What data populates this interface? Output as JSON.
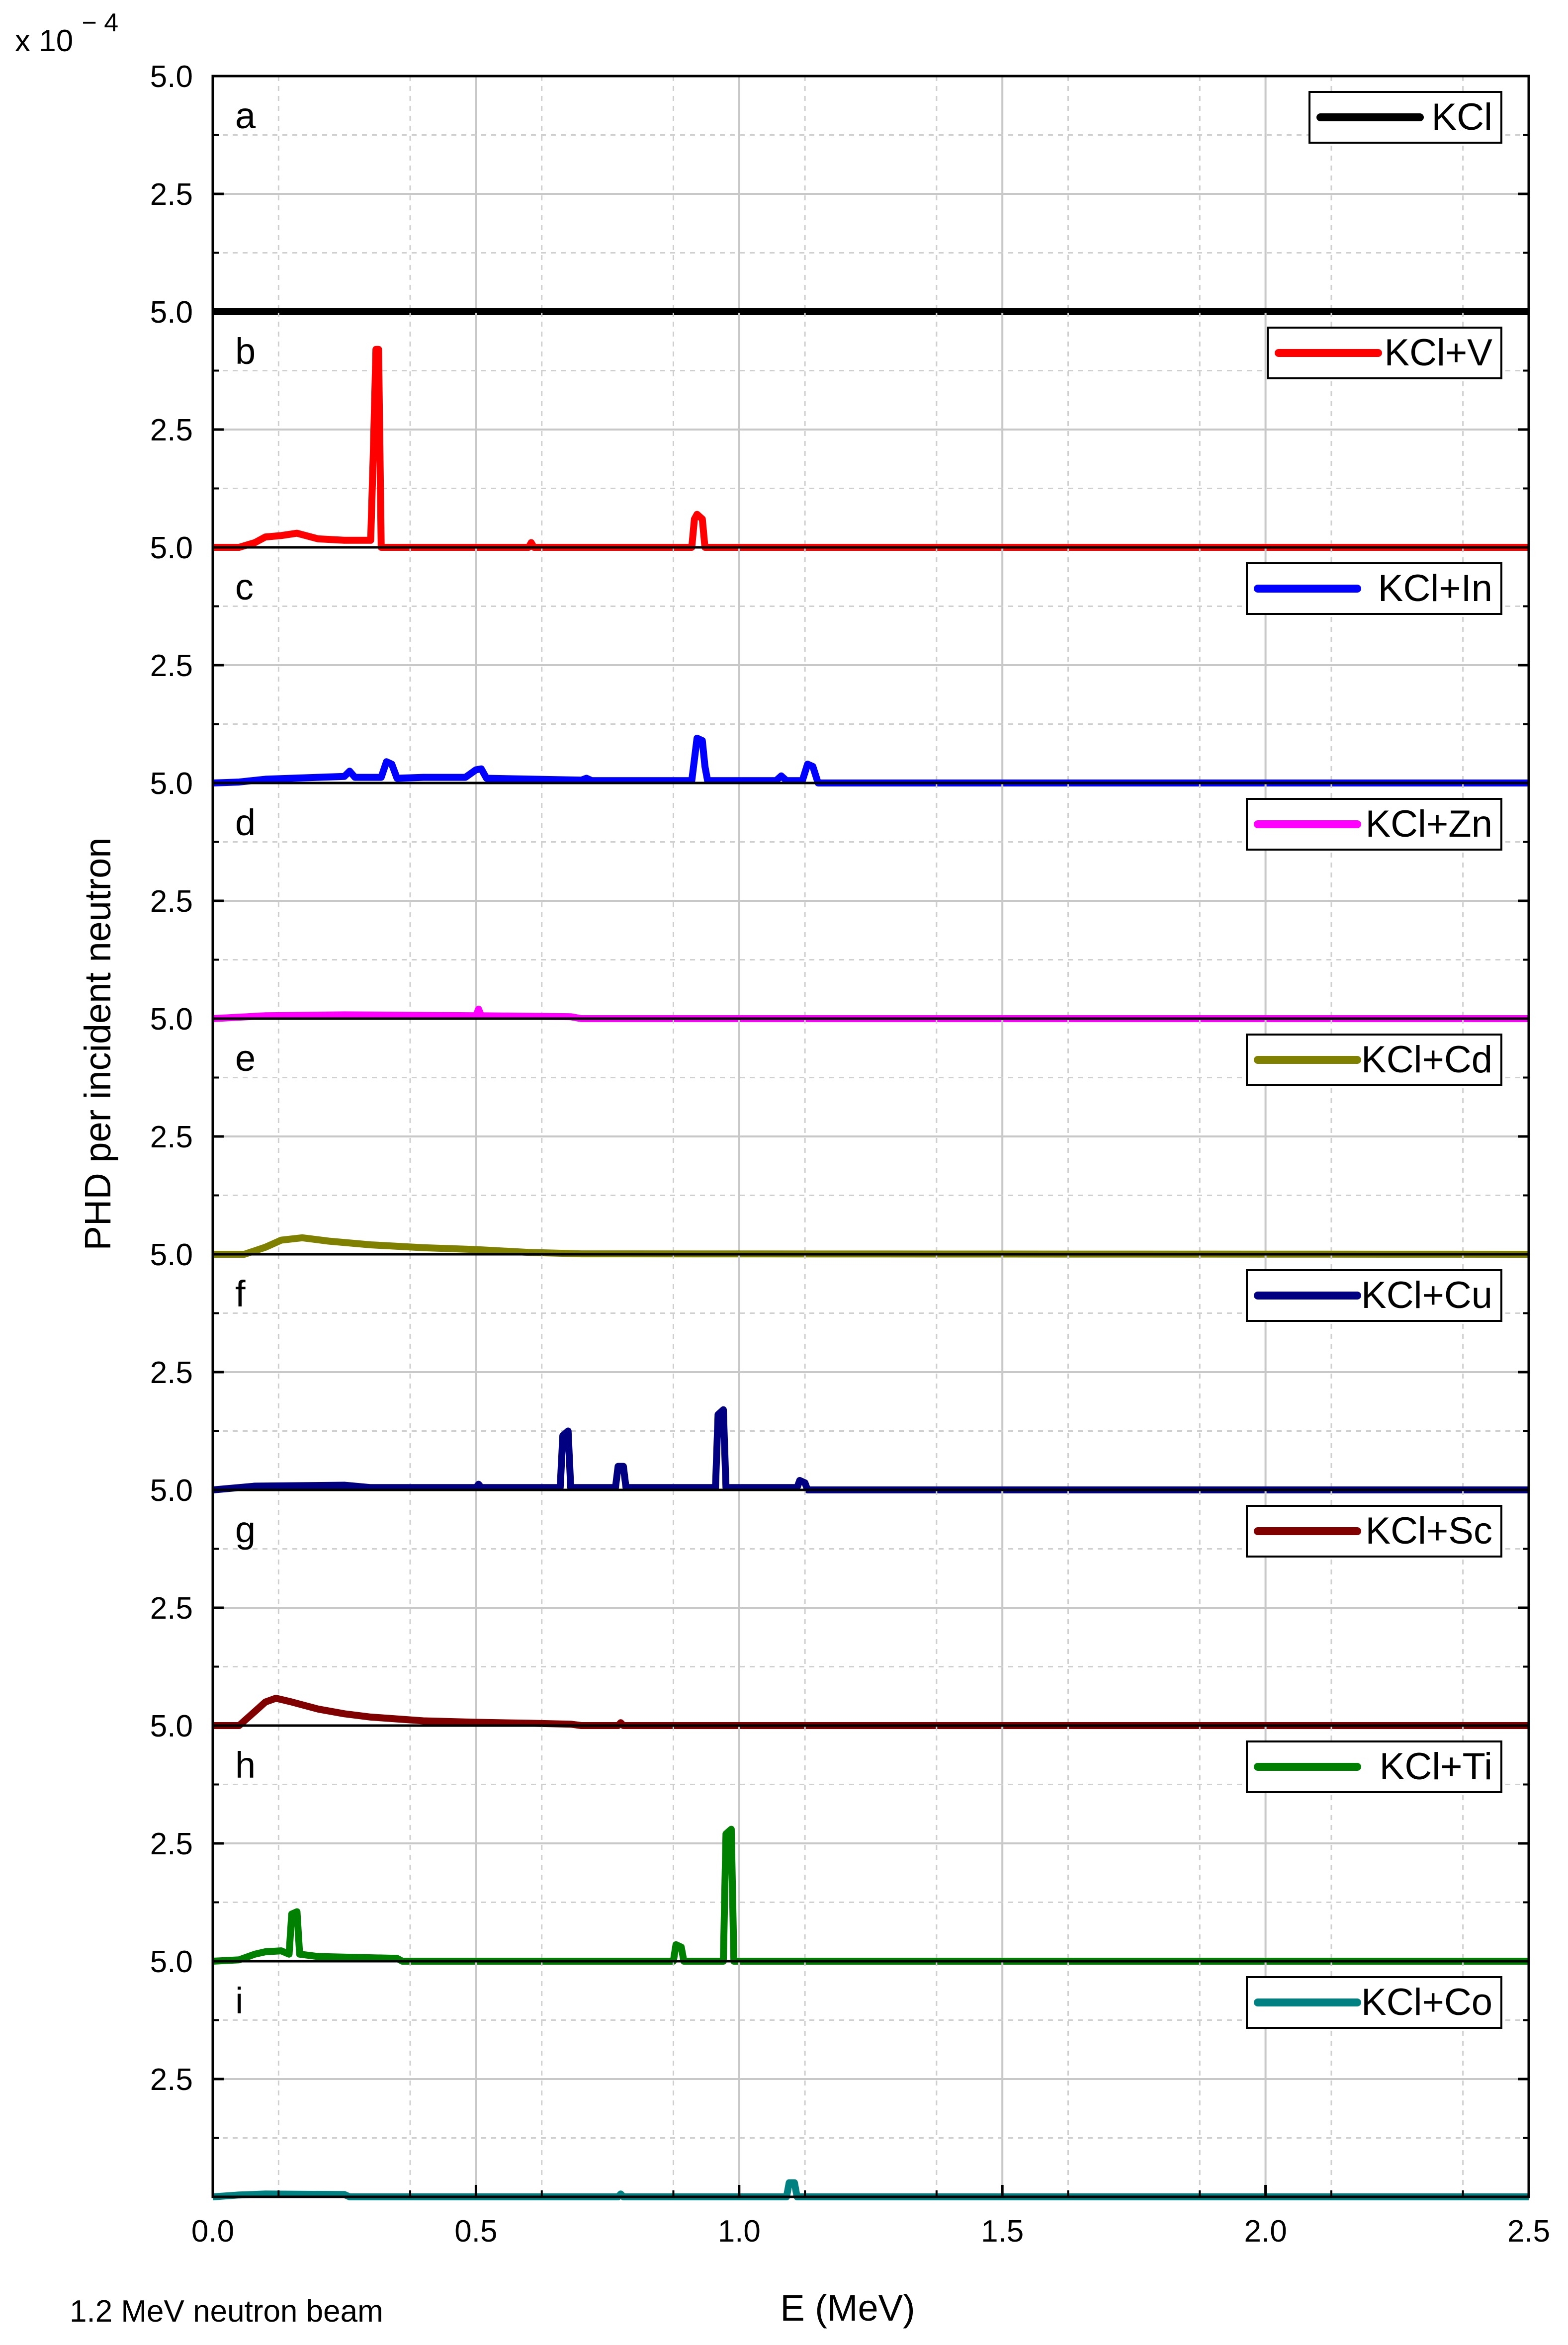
{
  "chart_data": {
    "type": "line",
    "layout": "stacked panels sharing x axis",
    "ylabel": "PHD per incident neutron",
    "xlabel": "E (MeV)",
    "y_multiplier": "x 10",
    "y_multiplier_exponent": "− 4",
    "footnote": "1.2 MeV neutron beam",
    "xlim": [
      0,
      2.5
    ],
    "xticks": [
      "0.0",
      "0.5",
      "1.0",
      "1.5",
      "2.0",
      "2.5"
    ],
    "ylim_per_panel": [
      0,
      5.0
    ],
    "grid": true,
    "legend_placement": "top-right of each panel",
    "panels": [
      {
        "letter": "a",
        "name": "KCl",
        "color": "#000000",
        "yticks": [
          "5.0",
          "2.5",
          "5.0"
        ],
        "points": [
          [
            0,
            0
          ],
          [
            2.5,
            0
          ]
        ]
      },
      {
        "letter": "b",
        "name": "KCl+V",
        "color": "#ff0000",
        "yticks": [
          "5.0",
          "2.5",
          "5.0"
        ],
        "points": [
          [
            0,
            0
          ],
          [
            0.05,
            0
          ],
          [
            0.08,
            0.1
          ],
          [
            0.1,
            0.22
          ],
          [
            0.13,
            0.25
          ],
          [
            0.16,
            0.3
          ],
          [
            0.2,
            0.18
          ],
          [
            0.25,
            0.15
          ],
          [
            0.3,
            0.15
          ],
          [
            0.305,
            2.0
          ],
          [
            0.31,
            4.2
          ],
          [
            0.315,
            4.2
          ],
          [
            0.32,
            0.0
          ],
          [
            0.6,
            0.0
          ],
          [
            0.605,
            0.1
          ],
          [
            0.61,
            0.0
          ],
          [
            0.91,
            0.0
          ],
          [
            0.915,
            0.6
          ],
          [
            0.92,
            0.7
          ],
          [
            0.93,
            0.6
          ],
          [
            0.935,
            0.0
          ],
          [
            2.5,
            0
          ]
        ]
      },
      {
        "letter": "c",
        "name": "KCl+In",
        "color": "#0000ff",
        "yticks": [
          "5.0",
          "2.5",
          "5.0"
        ],
        "points": [
          [
            0,
            0
          ],
          [
            0.05,
            0.02
          ],
          [
            0.1,
            0.08
          ],
          [
            0.2,
            0.12
          ],
          [
            0.25,
            0.14
          ],
          [
            0.26,
            0.25
          ],
          [
            0.27,
            0.12
          ],
          [
            0.32,
            0.12
          ],
          [
            0.33,
            0.45
          ],
          [
            0.34,
            0.4
          ],
          [
            0.35,
            0.1
          ],
          [
            0.4,
            0.12
          ],
          [
            0.48,
            0.12
          ],
          [
            0.5,
            0.28
          ],
          [
            0.51,
            0.3
          ],
          [
            0.52,
            0.1
          ],
          [
            0.7,
            0.06
          ],
          [
            0.71,
            0.1
          ],
          [
            0.72,
            0.05
          ],
          [
            0.91,
            0.05
          ],
          [
            0.92,
            0.95
          ],
          [
            0.93,
            0.9
          ],
          [
            0.935,
            0.35
          ],
          [
            0.94,
            0.05
          ],
          [
            1.07,
            0.05
          ],
          [
            1.08,
            0.15
          ],
          [
            1.09,
            0.05
          ],
          [
            1.12,
            0.05
          ],
          [
            1.13,
            0.4
          ],
          [
            1.14,
            0.35
          ],
          [
            1.15,
            0.0
          ],
          [
            2.5,
            0
          ]
        ]
      },
      {
        "letter": "d",
        "name": "KCl+Zn",
        "color": "#ff00ff",
        "yticks": [
          "5.0",
          "2.5",
          "5.0"
        ],
        "points": [
          [
            0,
            0
          ],
          [
            0.1,
            0.06
          ],
          [
            0.25,
            0.08
          ],
          [
            0.5,
            0.06
          ],
          [
            0.505,
            0.2
          ],
          [
            0.51,
            0.06
          ],
          [
            0.68,
            0.04
          ],
          [
            0.7,
            0.0
          ],
          [
            2.5,
            0
          ]
        ]
      },
      {
        "letter": "e",
        "name": "KCl+Cd",
        "color": "#808000",
        "yticks": [
          "5.0",
          "2.5",
          "5.0"
        ],
        "points": [
          [
            0,
            0
          ],
          [
            0.06,
            0.0
          ],
          [
            0.1,
            0.15
          ],
          [
            0.13,
            0.3
          ],
          [
            0.17,
            0.35
          ],
          [
            0.22,
            0.28
          ],
          [
            0.3,
            0.2
          ],
          [
            0.4,
            0.14
          ],
          [
            0.5,
            0.1
          ],
          [
            0.6,
            0.04
          ],
          [
            0.7,
            0.01
          ],
          [
            2.5,
            0
          ]
        ]
      },
      {
        "letter": "f",
        "name": "KCl+Cu",
        "color": "#000080",
        "yticks": [
          "5.0",
          "2.5",
          "5.0"
        ],
        "points": [
          [
            0,
            0
          ],
          [
            0.08,
            0.08
          ],
          [
            0.25,
            0.1
          ],
          [
            0.3,
            0.05
          ],
          [
            0.5,
            0.05
          ],
          [
            0.505,
            0.12
          ],
          [
            0.51,
            0.05
          ],
          [
            0.66,
            0.05
          ],
          [
            0.665,
            1.15
          ],
          [
            0.675,
            1.25
          ],
          [
            0.68,
            0.05
          ],
          [
            0.765,
            0.05
          ],
          [
            0.77,
            0.5
          ],
          [
            0.78,
            0.5
          ],
          [
            0.785,
            0.05
          ],
          [
            0.955,
            0.05
          ],
          [
            0.96,
            1.6
          ],
          [
            0.97,
            1.7
          ],
          [
            0.975,
            0.05
          ],
          [
            1.11,
            0.05
          ],
          [
            1.115,
            0.2
          ],
          [
            1.125,
            0.15
          ],
          [
            1.13,
            0.0
          ],
          [
            2.5,
            0
          ]
        ]
      },
      {
        "letter": "g",
        "name": "KCl+Sc",
        "color": "#800000",
        "yticks": [
          "5.0",
          "2.5",
          "5.0"
        ],
        "points": [
          [
            0,
            0
          ],
          [
            0.05,
            0.0
          ],
          [
            0.08,
            0.3
          ],
          [
            0.1,
            0.5
          ],
          [
            0.12,
            0.58
          ],
          [
            0.15,
            0.5
          ],
          [
            0.2,
            0.35
          ],
          [
            0.25,
            0.25
          ],
          [
            0.3,
            0.18
          ],
          [
            0.4,
            0.1
          ],
          [
            0.5,
            0.07
          ],
          [
            0.6,
            0.05
          ],
          [
            0.68,
            0.03
          ],
          [
            0.7,
            0.0
          ],
          [
            0.77,
            0.0
          ],
          [
            0.775,
            0.06
          ],
          [
            0.78,
            0.0
          ],
          [
            2.5,
            0
          ]
        ]
      },
      {
        "letter": "h",
        "name": "KCl+Ti",
        "color": "#008000",
        "yticks": [
          "5.0",
          "2.5",
          "5.0"
        ],
        "points": [
          [
            0,
            0
          ],
          [
            0.05,
            0.03
          ],
          [
            0.08,
            0.15
          ],
          [
            0.1,
            0.2
          ],
          [
            0.13,
            0.22
          ],
          [
            0.145,
            0.15
          ],
          [
            0.15,
            1.0
          ],
          [
            0.16,
            1.05
          ],
          [
            0.165,
            0.15
          ],
          [
            0.2,
            0.1
          ],
          [
            0.35,
            0.06
          ],
          [
            0.36,
            0.0
          ],
          [
            0.875,
            0.0
          ],
          [
            0.88,
            0.35
          ],
          [
            0.89,
            0.3
          ],
          [
            0.895,
            0.0
          ],
          [
            0.97,
            0.0
          ],
          [
            0.975,
            2.7
          ],
          [
            0.985,
            2.8
          ],
          [
            0.99,
            0.0
          ],
          [
            2.5,
            0
          ]
        ]
      },
      {
        "letter": "i",
        "name": "KCl+Co",
        "color": "#008080",
        "yticks": [
          "",
          "2.5",
          ""
        ],
        "points": [
          [
            0,
            0
          ],
          [
            0.05,
            0.04
          ],
          [
            0.1,
            0.06
          ],
          [
            0.25,
            0.05
          ],
          [
            0.26,
            0.0
          ],
          [
            0.77,
            0.0
          ],
          [
            0.775,
            0.06
          ],
          [
            0.78,
            0.0
          ],
          [
            1.09,
            0.0
          ],
          [
            1.095,
            0.3
          ],
          [
            1.105,
            0.3
          ],
          [
            1.11,
            0.0
          ],
          [
            2.5,
            0
          ]
        ]
      }
    ]
  }
}
